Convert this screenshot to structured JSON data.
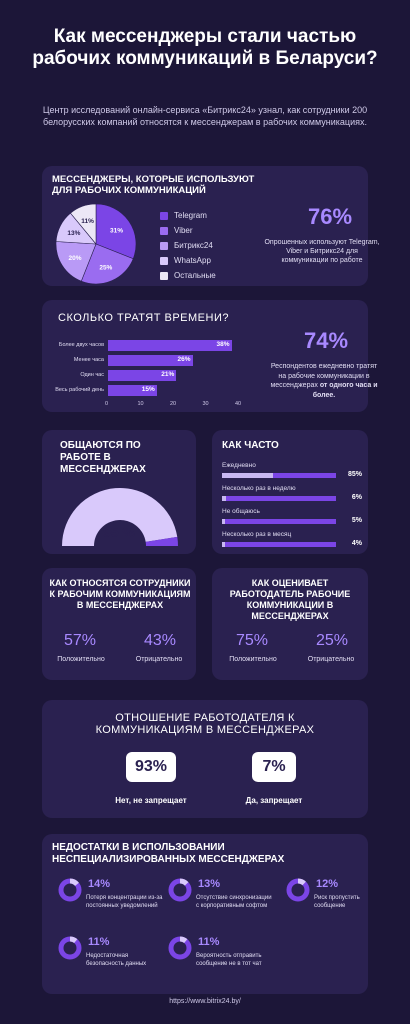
{
  "title": "Как мессенджеры стали частью рабочих коммуникаций в Беларуси?",
  "intro": "Центр исследований онлайн-сервиса «Битрикс24» узнал, как сотрудники 200 белорусских компаний относятся к мессенджерам в рабочих коммуникациях.",
  "messengers": {
    "heading": "МЕССЕНДЖЕРЫ, КОТОРЫЕ ИСПОЛЬЗУЮТ ДЛЯ РАБОЧИХ КОММУНИКАЦИЙ",
    "big_value": "76%",
    "note": "Опрошенных используют Telegram, Viber и Битрикс24 для коммуникации по работе"
  },
  "time": {
    "heading": "СКОЛЬКО ТРАТЯТ ВРЕМЕНИ?",
    "big_value": "74%",
    "note_prefix": "Респондентов ежедневно тратят на рабочие коммуникации в мессенджерах ",
    "note_bold": "от одного часа и более."
  },
  "communicate": {
    "heading": "ОБЩАЮТСЯ ПО РАБОТЕ В МЕССЕНДЖЕРАХ",
    "value": "95 %",
    "fraction": 0.95
  },
  "frequency": {
    "heading": "КАК ЧАСТО",
    "items": [
      {
        "label": "Ежедневно",
        "value": "85%",
        "fraction": 0.85
      },
      {
        "label": "Несколько раз в неделю",
        "value": "6%",
        "fraction": 0.06
      },
      {
        "label": "Не общаюсь",
        "value": "5%",
        "fraction": 0.05
      },
      {
        "label": "Несколько раз в месяц",
        "value": "4%",
        "fraction": 0.04
      }
    ]
  },
  "employees": {
    "heading": "КАК ОТНОСЯТСЯ СОТРУДНИКИ К РАБОЧИМ КОММУНИКАЦИЯМ В МЕССЕНДЖЕРАХ",
    "positive_value": "57%",
    "positive_label": "Положительно",
    "negative_value": "43%",
    "negative_label": "Отрицательно"
  },
  "employer_eval": {
    "heading": "КАК ОЦЕНИВАЕТ РАБОТОДАТЕЛЬ РАБОЧИЕ КОММУНИКАЦИИ В МЕССЕНДЖЕРАХ",
    "positive_value": "75%",
    "positive_label": "Положительно",
    "negative_value": "25%",
    "negative_label": "Отрицательно"
  },
  "employer_attitude": {
    "heading": "ОТНОШЕНИЕ  РАБОТОДАТЕЛЯ К КОММУНИКАЦИЯМ В МЕССЕНДЖЕРАХ",
    "left_value": "93%",
    "left_label": "Нет, не запрещает",
    "right_value": "7%",
    "right_label": "Да, запрещает"
  },
  "drawbacks": {
    "heading": "НЕДОСТАТКИ В ИСПОЛЬЗОВАНИИ НЕСПЕЦИАЛИЗИРОВАННЫХ МЕССЕНДЖЕРАХ",
    "items": [
      {
        "value": "14%",
        "fraction": 0.14,
        "label": "Потеря концентрации из-за постоянных уведомлений"
      },
      {
        "value": "13%",
        "fraction": 0.13,
        "label": "Отсутствие синхронизации с корпоративным софтом"
      },
      {
        "value": "12%",
        "fraction": 0.12,
        "label": "Риск пропустить сообщение"
      },
      {
        "value": "11%",
        "fraction": 0.11,
        "label": "Недостаточная безопасность данных"
      },
      {
        "value": "11%",
        "fraction": 0.11,
        "label": "Вероятность отправить сообщение не в тот чат"
      }
    ]
  },
  "footer": "https://www.bitrix24.by/",
  "colors": {
    "accent": "#a889ff",
    "bar": "#7b45e6",
    "card": "#2a2150",
    "background": "#1c1638"
  },
  "chart_data": [
    {
      "type": "pie",
      "categories": [
        "Telegram",
        "Viber",
        "Битрикс24",
        "WhatsApp",
        "Остальные"
      ],
      "values": [
        31,
        25,
        20,
        13,
        11
      ],
      "labels": [
        "31%",
        "25%",
        "20%",
        "13%",
        "11%"
      ],
      "colors": [
        "#7b45e6",
        "#9a6cf0",
        "#b99af6",
        "#d9c9fb",
        "#ece7f6"
      ],
      "legend": "right"
    },
    {
      "type": "bar",
      "orientation": "horizontal",
      "categories": [
        "Более двух часов",
        "Менее часа",
        "Один час",
        "Весь рабочий день"
      ],
      "values": [
        38,
        26,
        21,
        15
      ],
      "labels": [
        "38%",
        "26%",
        "21%",
        "15%"
      ],
      "xlim": [
        0,
        40
      ],
      "xticks": [
        "0",
        "10",
        "20",
        "30",
        "40"
      ]
    }
  ]
}
